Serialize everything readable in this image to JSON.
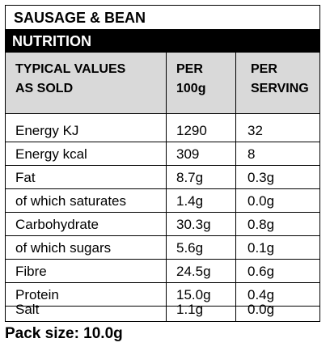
{
  "product": {
    "name": "SAUSAGE & BEAN",
    "section": "NUTRITION"
  },
  "table": {
    "headers": {
      "col1_line1": "TYPICAL VALUES",
      "col1_line2": "AS SOLD",
      "col2_line1": "PER",
      "col2_line2": "100g",
      "col3_line1": "PER",
      "col3_line2": "SERVING"
    },
    "rows": [
      {
        "label": "Energy KJ",
        "per100": "1290",
        "serving": "32"
      },
      {
        "label": "Energy kcal",
        "per100": "309",
        "serving": "8"
      },
      {
        "label": "Fat",
        "per100": "8.7g",
        "serving": "0.3g"
      },
      {
        "label": "of which saturates",
        "per100": "1.4g",
        "serving": "0.0g"
      },
      {
        "label": "Carbohydrate",
        "per100": "30.3g",
        "serving": "0.8g"
      },
      {
        "label": "of which sugars",
        "per100": "5.6g",
        "serving": "0.1g"
      },
      {
        "label": "Fibre",
        "per100": "24.5g",
        "serving": "0.6g"
      },
      {
        "label": "Protein",
        "per100": "15.0g",
        "serving": "0.4g"
      },
      {
        "label": "Salt",
        "per100": "1.1g",
        "serving": "0.0g"
      }
    ]
  },
  "pack_size": "Pack size: 10.0g"
}
